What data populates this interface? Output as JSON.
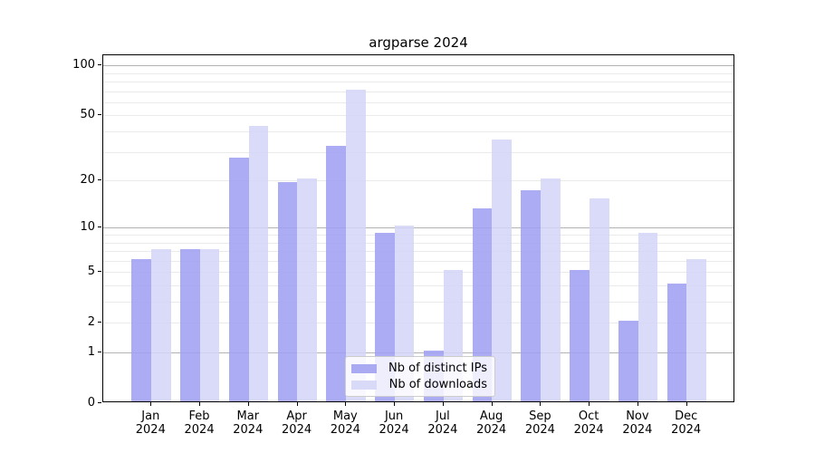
{
  "title": "argparse 2024",
  "chart_data": {
    "type": "bar",
    "title": "argparse 2024",
    "categories": [
      "Jan",
      "Feb",
      "Mar",
      "Apr",
      "May",
      "Jun",
      "Jul",
      "Aug",
      "Sep",
      "Oct",
      "Nov",
      "Dec"
    ],
    "category_year": "2024",
    "series": [
      {
        "name": "Nb of distinct IPs",
        "color": "rgba(160,160,243,0.88)",
        "solid_color": "#aaaaf3",
        "values": [
          6,
          7,
          27,
          19,
          32,
          9,
          1,
          13,
          17,
          5,
          2,
          4
        ]
      },
      {
        "name": "Nb of downloads",
        "color": "rgba(212,212,248,0.85)",
        "solid_color": "#d9d9f8",
        "values": [
          7,
          7,
          42,
          20,
          70,
          10,
          5,
          35,
          20,
          15,
          9,
          6
        ]
      }
    ],
    "yscale": "log1p",
    "ylim": [
      0,
      105
    ],
    "yticks": [
      100,
      50,
      20,
      10,
      5,
      2,
      1,
      0
    ],
    "major_gridlines": [
      1,
      10,
      100
    ],
    "minor_gridlines": [
      2,
      3,
      4,
      5,
      6,
      7,
      8,
      9,
      20,
      30,
      40,
      50,
      60,
      70,
      80,
      90
    ],
    "grid": true,
    "legend_position": "lower-center"
  }
}
